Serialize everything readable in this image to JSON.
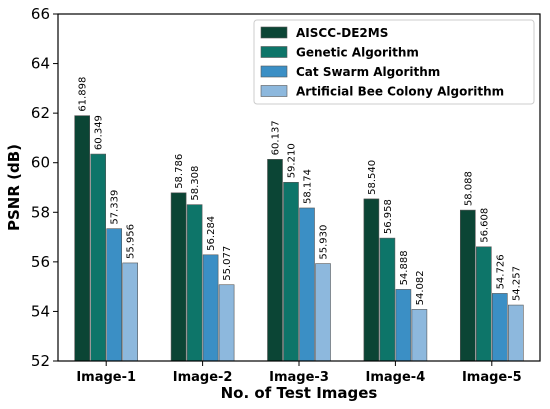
{
  "chart_data": {
    "type": "bar",
    "xlabel": "No. of Test Images",
    "ylabel": "PSNR (dB)",
    "ylim": [
      52,
      66
    ],
    "yticks": [
      52,
      54,
      56,
      58,
      60,
      62,
      64,
      66
    ],
    "grid": false,
    "legend_position": "top-right",
    "categories": [
      "Image-1",
      "Image-2",
      "Image-3",
      "Image-4",
      "Image-5"
    ],
    "series": [
      {
        "name": "AISCC-DE2MS",
        "color": "#0b4535",
        "values": [
          61.898,
          58.786,
          60.137,
          58.54,
          58.088
        ],
        "labels": [
          "61.898",
          "58.786",
          "60.137",
          "58.540",
          "58.088"
        ]
      },
      {
        "name": "Genetic Algorithm",
        "color": "#0d7569",
        "values": [
          60.349,
          58.308,
          59.21,
          56.958,
          56.608
        ],
        "labels": [
          "60.349",
          "58.308",
          "59.210",
          "56.958",
          "56.608"
        ]
      },
      {
        "name": "Cat Swarm Algorithm",
        "color": "#3b8fc5",
        "values": [
          57.339,
          56.284,
          58.174,
          54.888,
          54.726
        ],
        "labels": [
          "57.339",
          "56.284",
          "58.174",
          "54.888",
          "54.726"
        ]
      },
      {
        "name": "Artificial Bee Colony Algorithm",
        "color": "#8db8dd",
        "values": [
          55.956,
          55.077,
          55.93,
          54.082,
          54.257
        ],
        "labels": [
          "55.956",
          "55.077",
          "55.930",
          "54.082",
          "54.257"
        ]
      }
    ]
  }
}
